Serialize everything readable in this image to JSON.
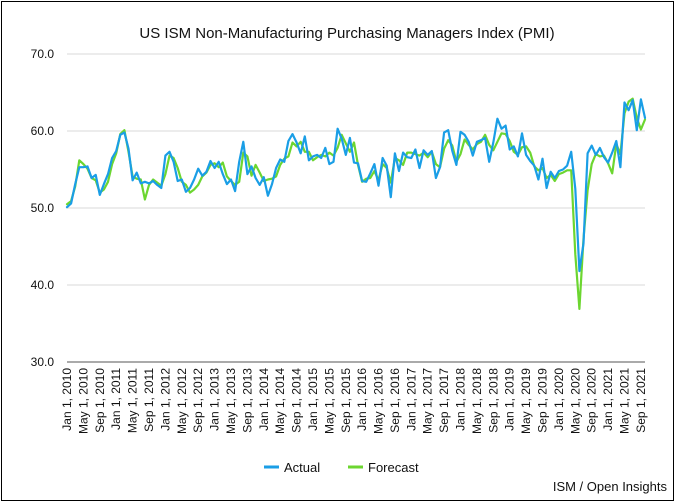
{
  "chart_data": {
    "type": "line",
    "title": "US ISM Non-Manufacturing Purchasing Managers Index (PMI)",
    "xlabel": "",
    "ylabel": "",
    "ylim": [
      30,
      70
    ],
    "y_ticks": [
      "30.0",
      "40.0",
      "50.0",
      "60.0",
      "70.0"
    ],
    "x_ticks": [
      "Jan 1, 2010",
      "May 1, 2010",
      "Sep 1, 2010",
      "Jan 1, 2011",
      "May 1, 2011",
      "Sep 1, 2011",
      "Jan 1, 2012",
      "May 1, 2012",
      "Sep 1, 2012",
      "Jan 1, 2013",
      "May 1, 2013",
      "Sep 1, 2013",
      "Jan 1, 2014",
      "May 1, 2014",
      "Sep 1, 2014",
      "Jan 1, 2015",
      "May 1, 2015",
      "Sep 1, 2015",
      "Jan 1, 2016",
      "May 1, 2016",
      "Sep 1, 2016",
      "Jan 1, 2017",
      "May 1, 2017",
      "Sep 1, 2017",
      "Jan 1, 2018",
      "May 1, 2018",
      "Sep 1, 2018",
      "Jan 1, 2019",
      "May 1, 2019",
      "Sep 1, 2019",
      "Jan 1, 2020",
      "May 1, 2020",
      "Sep 1, 2020",
      "Jan 1, 2021",
      "May 1, 2021",
      "Sep 1, 2021"
    ],
    "x_start": "Jan 1, 2010",
    "x_frequency": "monthly",
    "grid": "horizontal",
    "legend_position": "bottom-center",
    "colors": {
      "Actual": "#1a9ee6",
      "Forecast": "#6cd630"
    },
    "series": [
      {
        "name": "Actual",
        "values": [
          50.1,
          50.6,
          53.1,
          55.3,
          55.3,
          55.4,
          53.9,
          54.3,
          51.7,
          53.1,
          54.4,
          56.5,
          57.4,
          59.5,
          59.8,
          57.7,
          53.6,
          54.6,
          53.2,
          53.4,
          53.2,
          53.5,
          53.0,
          52.6,
          56.8,
          57.3,
          56.0,
          53.5,
          53.7,
          52.1,
          52.6,
          53.7,
          55.1,
          54.2,
          54.7,
          56.1,
          55.2,
          56.0,
          54.4,
          53.1,
          53.7,
          52.2,
          56.0,
          58.6,
          54.4,
          55.4,
          53.9,
          53.0,
          54.0,
          51.6,
          53.1,
          55.2,
          56.3,
          56.0,
          58.7,
          59.6,
          58.5,
          57.1,
          59.3,
          56.2,
          56.7,
          56.9,
          56.5,
          57.8,
          55.7,
          56.0,
          60.3,
          59.0,
          56.9,
          59.1,
          55.9,
          55.8,
          53.5,
          53.4,
          54.5,
          55.7,
          52.9,
          56.5,
          55.5,
          51.4,
          57.1,
          54.8,
          57.2,
          56.6,
          56.5,
          57.6,
          55.2,
          57.5,
          56.9,
          57.4,
          53.9,
          55.3,
          59.8,
          60.1,
          57.4,
          55.6,
          59.9,
          59.5,
          58.6,
          56.8,
          58.6,
          58.8,
          59.1,
          56.0,
          58.5,
          61.6,
          60.3,
          60.7,
          57.6,
          58.0,
          56.7,
          59.7,
          56.9,
          56.1,
          55.5,
          53.7,
          56.4,
          52.6,
          54.7,
          53.9,
          54.8,
          55.0,
          55.5,
          57.3,
          52.5,
          41.8,
          45.4,
          57.1,
          58.1,
          56.9,
          57.8,
          56.6,
          55.9,
          57.2,
          58.7,
          55.3,
          63.7,
          62.7,
          64.0,
          60.1,
          64.1,
          61.7
        ]
      },
      {
        "name": "Forecast",
        "values": [
          50.5,
          50.9,
          52.8,
          56.2,
          55.7,
          55.1,
          53.9,
          53.6,
          52.0,
          52.4,
          53.4,
          55.7,
          57.1,
          59.6,
          60.1,
          57.3,
          54.1,
          53.8,
          53.7,
          51.1,
          53.0,
          53.7,
          53.3,
          52.9,
          54.4,
          56.8,
          56.5,
          55.2,
          53.4,
          53.0,
          52.0,
          52.4,
          53.0,
          54.1,
          54.6,
          55.6,
          55.8,
          55.3,
          55.9,
          54.1,
          53.5,
          53.0,
          53.4,
          57.2,
          56.7,
          54.2,
          55.6,
          54.6,
          53.5,
          53.7,
          53.8,
          54.1,
          55.6,
          56.4,
          56.7,
          58.5,
          58.0,
          58.6,
          57.3,
          57.3,
          56.2,
          56.6,
          56.9,
          56.7,
          57.2,
          56.8,
          57.8,
          59.5,
          58.4,
          57.3,
          58.5,
          55.6,
          53.4,
          53.8,
          53.9,
          54.8,
          53.6,
          55.7,
          55.2,
          53.3,
          56.5,
          56.2,
          55.6,
          57.2,
          57.2,
          57.0,
          56.8,
          57.2,
          56.6,
          57.3,
          55.7,
          55.3,
          57.7,
          58.8,
          58.1,
          56.0,
          57.0,
          58.9,
          58.2,
          57.6,
          58.3,
          58.6,
          59.5,
          58.2,
          57.5,
          58.6,
          59.7,
          59.6,
          58.7,
          57.3,
          56.9,
          57.9,
          58.0,
          57.2,
          55.4,
          54.9,
          55.2,
          53.9,
          54.3,
          53.5,
          54.4,
          54.6,
          54.9,
          54.9,
          44.0,
          36.9,
          46.0,
          52.3,
          55.7,
          57.0,
          56.7,
          56.8,
          55.8,
          54.5,
          58.3,
          57.0,
          62.3,
          63.8,
          64.2,
          61.7,
          60.2,
          61.5
        ]
      }
    ]
  },
  "legend": {
    "items": [
      "Actual",
      "Forecast"
    ]
  },
  "source_text": "ISM / Open Insights"
}
